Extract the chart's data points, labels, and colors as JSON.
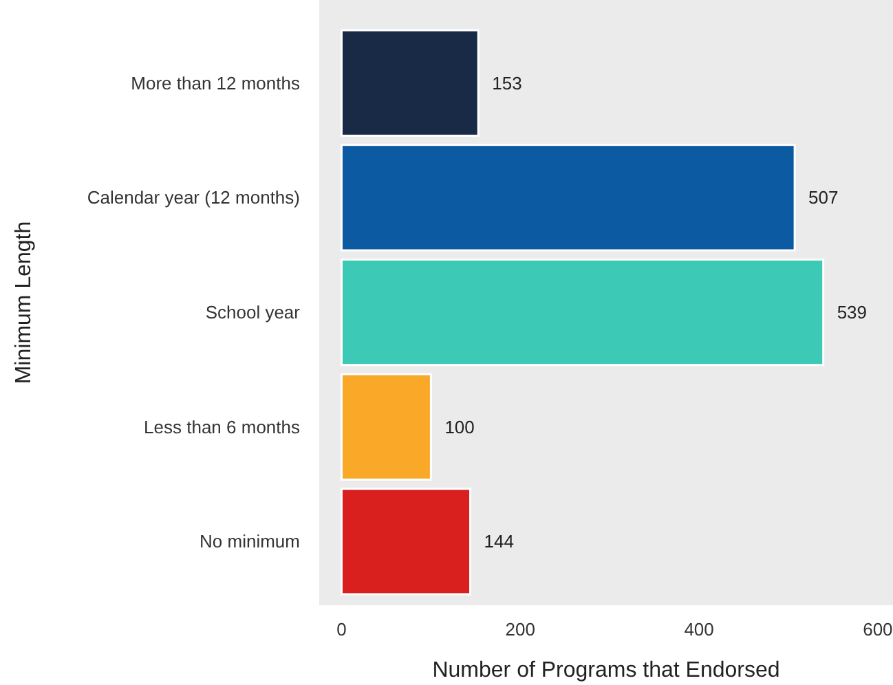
{
  "chart_data": {
    "type": "bar",
    "orientation": "horizontal",
    "xlabel": "Number of Programs that Endorsed",
    "ylabel": "Minimum Length",
    "categories": [
      "More than 12 months",
      "Calendar year (12 months)",
      "School year",
      "Less than 6 months",
      "No minimum"
    ],
    "values": [
      153,
      507,
      539,
      100,
      144
    ],
    "colors": [
      "#182a45",
      "#0b5aa2",
      "#3ccab6",
      "#f9a828",
      "#d9201f"
    ],
    "xlim": [
      -25,
      617
    ],
    "xticks": [
      0,
      200,
      400,
      600
    ],
    "data_labels": true,
    "grid": false
  }
}
